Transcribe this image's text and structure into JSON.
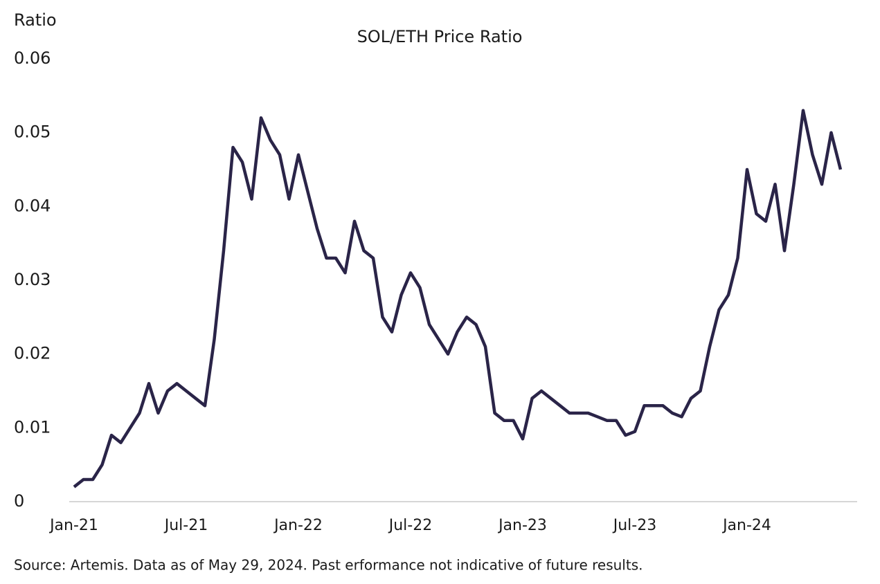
{
  "chart_data": {
    "type": "line",
    "title": "SOL/ETH Price Ratio",
    "y_label": "Ratio",
    "source": "Source: Artemis. Data as of May 29, 2024. Past erformance not indicative of future results.",
    "categories": [
      "Jan-21",
      null,
      null,
      null,
      null,
      null,
      null,
      null,
      null,
      null,
      null,
      null,
      "Jul-21",
      null,
      null,
      null,
      null,
      null,
      null,
      null,
      null,
      null,
      null,
      null,
      "Jan-22",
      null,
      null,
      null,
      null,
      null,
      null,
      null,
      null,
      null,
      null,
      null,
      "Jul-22",
      null,
      null,
      null,
      null,
      null,
      null,
      null,
      null,
      null,
      null,
      null,
      "Jan-23",
      null,
      null,
      null,
      null,
      null,
      null,
      null,
      null,
      null,
      null,
      null,
      "Jul-23",
      null,
      null,
      null,
      null,
      null,
      null,
      null,
      null,
      null,
      null,
      null,
      "Jan-24",
      null,
      null,
      null,
      null,
      null,
      null,
      null,
      null,
      null,
      null
    ],
    "series": [
      {
        "name": "SOL/ETH",
        "color": "#2a2448",
        "values": [
          0.002,
          0.003,
          0.003,
          0.005,
          0.009,
          0.008,
          0.01,
          0.012,
          0.016,
          0.012,
          0.015,
          0.016,
          0.015,
          0.014,
          0.013,
          0.022,
          0.034,
          0.048,
          0.046,
          0.041,
          0.052,
          0.049,
          0.047,
          0.041,
          0.047,
          0.042,
          0.037,
          0.033,
          0.033,
          0.031,
          0.038,
          0.034,
          0.033,
          0.025,
          0.023,
          0.028,
          0.031,
          0.029,
          0.024,
          0.022,
          0.02,
          0.023,
          0.025,
          0.024,
          0.021,
          0.012,
          0.011,
          0.011,
          0.0085,
          0.014,
          0.015,
          0.014,
          0.013,
          0.012,
          0.012,
          0.012,
          0.0115,
          0.011,
          0.011,
          0.009,
          0.0095,
          0.013,
          0.013,
          0.013,
          0.012,
          0.0115,
          0.014,
          0.015,
          0.021,
          0.026,
          0.028,
          0.033,
          0.045,
          0.039,
          0.038,
          0.043,
          0.034,
          0.043,
          0.053,
          0.047,
          0.043,
          0.05,
          0.045
        ]
      }
    ],
    "ylim": [
      0,
      0.06
    ],
    "yticks": [
      0,
      0.01,
      0.02,
      0.03,
      0.04,
      0.05,
      0.06
    ],
    "grid": false
  }
}
